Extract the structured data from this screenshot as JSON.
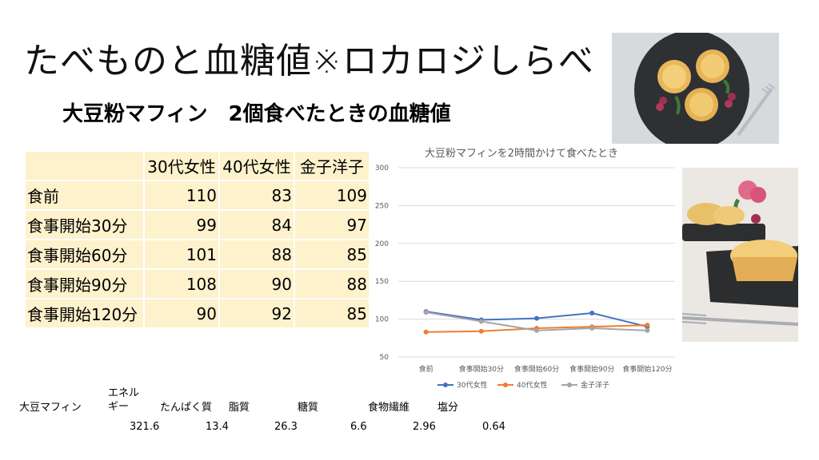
{
  "title": "たべものと血糖値※ロカロジしらべ",
  "subtitle": "大豆粉マフィン　2個食べたときの血糖値",
  "table": {
    "headers": [
      "",
      "30代女性",
      "40代女性",
      "金子洋子"
    ],
    "rows": [
      {
        "label": "食前",
        "values": [
          "110",
          "83",
          "109"
        ]
      },
      {
        "label": "食事開始30分",
        "values": [
          "99",
          "84",
          "97"
        ]
      },
      {
        "label": "食事開始60分",
        "values": [
          "101",
          "88",
          "85"
        ]
      },
      {
        "label": "食事開始90分",
        "values": [
          "108",
          "90",
          "88"
        ]
      },
      {
        "label": "食事開始120分",
        "values": [
          "90",
          "92",
          "85"
        ]
      }
    ]
  },
  "chart_data": {
    "type": "line",
    "title": "大豆粉マフィンを2時間かけて食べたとき",
    "categories": [
      "食前",
      "食事開始30分",
      "食事開始60分",
      "食事開始90分",
      "食事開始120分"
    ],
    "series": [
      {
        "name": "30代女性",
        "values": [
          110,
          99,
          101,
          108,
          90
        ],
        "color": "#4472c4"
      },
      {
        "name": "40代女性",
        "values": [
          83,
          84,
          88,
          90,
          92
        ],
        "color": "#ed7d31"
      },
      {
        "name": "金子洋子",
        "values": [
          109,
          97,
          85,
          88,
          85
        ],
        "color": "#a5a5a5"
      }
    ],
    "ylim": [
      50,
      300
    ],
    "yticks": [
      50,
      100,
      150,
      200,
      250,
      300
    ],
    "legend": "bottom"
  },
  "nutrition": {
    "food_label": "大豆マフィン",
    "energy_label_line1": "エネル",
    "energy_label_line2": "ギー",
    "protein_label": "たんぱく質",
    "fat_label": "脂質",
    "carb_label": "糖質",
    "fiber_label": "食物繊維",
    "salt_label": "塩分",
    "energy_value": "321.6",
    "protein_value": "13.4",
    "fat_value": "26.3",
    "carb_value": "6.6",
    "fiber_value": "2.96",
    "salt_value": "0.64"
  }
}
